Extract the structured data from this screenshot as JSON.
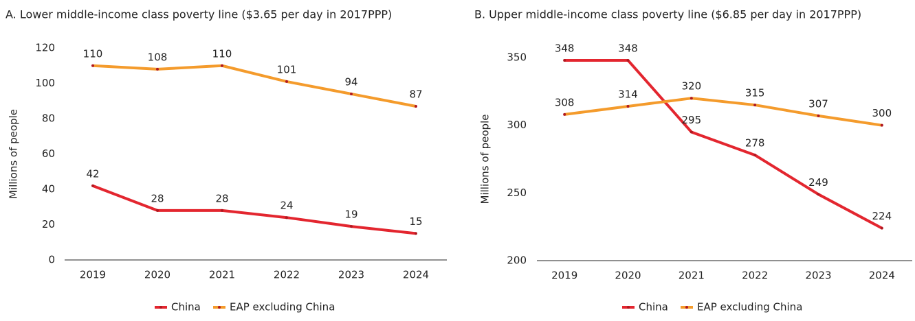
{
  "chart_data": [
    {
      "type": "line",
      "title": "A. Lower middle-income class poverty line ($3.65 per day in 2017PPP)",
      "y_label": "Millions of people",
      "categories": [
        "2019",
        "2020",
        "2021",
        "2022",
        "2023",
        "2024"
      ],
      "series": [
        {
          "name": "China",
          "color": "#e3262f",
          "values": [
            42,
            28,
            28,
            24,
            19,
            15
          ]
        },
        {
          "name": "EAP excluding China",
          "color": "#f49b2c",
          "values": [
            110,
            108,
            110,
            101,
            94,
            87
          ]
        }
      ],
      "ylim": [
        0,
        120
      ],
      "yticks": [
        0,
        20,
        40,
        60,
        80,
        100,
        120
      ],
      "grid": false,
      "legend": "bottom"
    },
    {
      "type": "line",
      "title": "B. Upper middle-income class poverty line ($6.85 per day in 2017PPP)",
      "y_label": "Millions of people",
      "categories": [
        "2019",
        "2020",
        "2021",
        "2022",
        "2023",
        "2024"
      ],
      "series": [
        {
          "name": "China",
          "color": "#e3262f",
          "values": [
            348,
            348,
            295,
            278,
            249,
            224
          ]
        },
        {
          "name": "EAP excluding China",
          "color": "#f49b2c",
          "values": [
            308,
            314,
            320,
            315,
            307,
            300
          ]
        }
      ],
      "ylim": [
        200,
        350
      ],
      "yticks": [
        200,
        250,
        300,
        350
      ],
      "grid": false,
      "legend": "bottom"
    }
  ]
}
